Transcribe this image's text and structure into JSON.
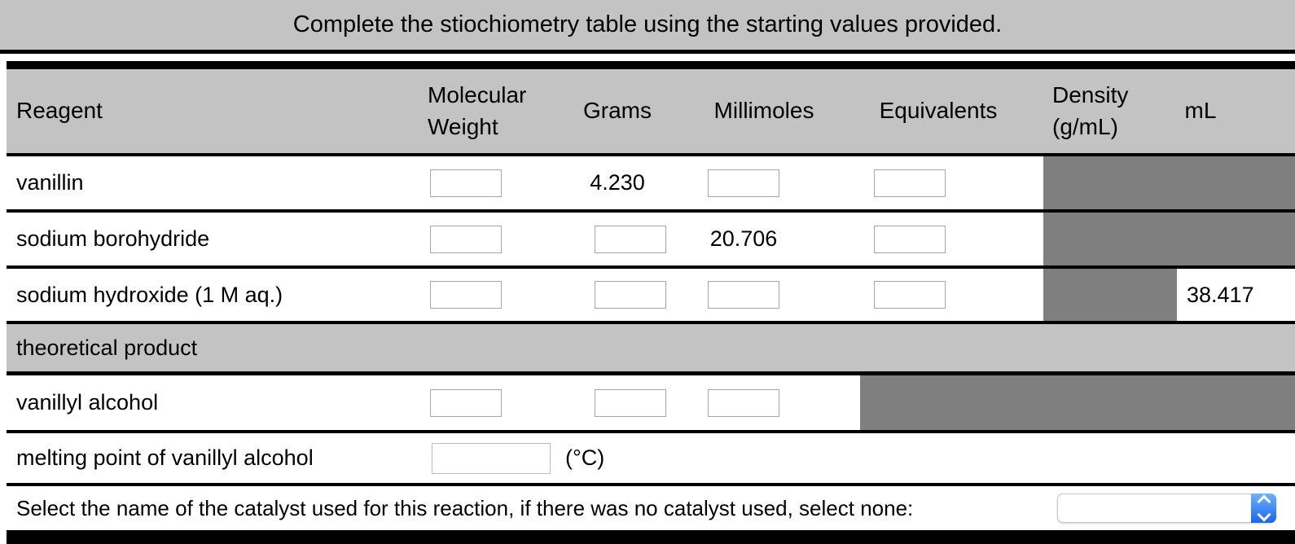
{
  "title": "Complete the stiochiometry table using the starting values provided.",
  "headers": {
    "reagent": "Reagent",
    "molecular_weight": "Molecular\nWeight",
    "grams": "Grams",
    "millimoles": "Millimoles",
    "equivalents": "Equivalents",
    "density": "Density\n(g/mL)",
    "ml": "mL"
  },
  "rows": {
    "vanillin": {
      "label": "vanillin",
      "grams": "4.230"
    },
    "sodium_borohydride": {
      "label": "sodium borohydride",
      "millimoles": "20.706"
    },
    "sodium_hydroxide": {
      "label": "sodium hydroxide (1 M aq.)",
      "ml": "38.417"
    },
    "section": {
      "label": "theoretical product"
    },
    "vanillyl_alcohol": {
      "label": "vanillyl alcohol"
    },
    "melting_point": {
      "label": "melting point of vanillyl alcohol",
      "unit": "(°C)"
    }
  },
  "catalyst": {
    "prompt": "Select the name of the catalyst used for this reaction, if there was no catalyst used, select none:",
    "selected_value": ""
  },
  "icons": {
    "select_stepper": "chevron-up-down-icon"
  },
  "colors": {
    "band_gray": "#c3c3c3",
    "blocked_gray": "#7f7f7f",
    "select_blue_top": "#6fb2fd",
    "select_blue_bottom": "#1a66f0",
    "border_black": "#000000"
  }
}
